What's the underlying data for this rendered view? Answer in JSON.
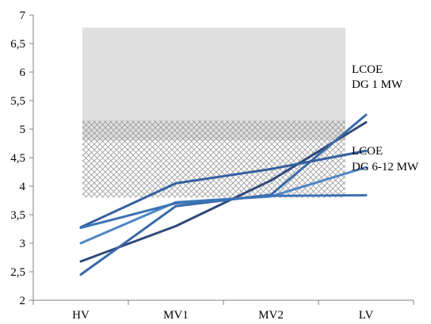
{
  "chart_data": {
    "type": "line",
    "title": "",
    "xlabel": "",
    "ylabel": "",
    "categories": [
      "HV",
      "MV1",
      "MV2",
      "LV"
    ],
    "ylim": [
      2,
      7
    ],
    "yticks": [
      2,
      2.5,
      3,
      3.5,
      4,
      4.5,
      5,
      5.5,
      6,
      6.5,
      7
    ],
    "ytick_labels": [
      "2",
      "2,5",
      "3",
      "3,5",
      "4",
      "4,5",
      "5",
      "5,5",
      "6",
      "6,5",
      "7"
    ],
    "grid": false,
    "legend": "none",
    "series": [
      {
        "values": [
          2.68,
          3.3,
          4.1,
          5.12
        ],
        "color": "#2e4a7a"
      },
      {
        "values": [
          2.45,
          3.65,
          3.85,
          5.25
        ],
        "color": "#3a6aa8"
      },
      {
        "values": [
          3.28,
          4.05,
          4.3,
          4.62
        ],
        "color": "#3460a0"
      },
      {
        "values": [
          3.0,
          3.72,
          3.82,
          4.33
        ],
        "color": "#4f86c6"
      },
      {
        "values": [
          3.27,
          3.7,
          3.83,
          3.84
        ],
        "color": "#3c72b4"
      }
    ],
    "bands": [
      {
        "label_lines": [
          "LCOE",
          "DG 1 MW"
        ],
        "y_range": [
          4.8,
          6.78
        ],
        "fill": "solid",
        "color": "#d9d9d9"
      },
      {
        "label_lines": [
          "LCOE",
          "DG 6-12 MW"
        ],
        "y_range": [
          3.8,
          5.15
        ],
        "fill": "crosshatch",
        "color": "#9a9a9a"
      }
    ]
  }
}
